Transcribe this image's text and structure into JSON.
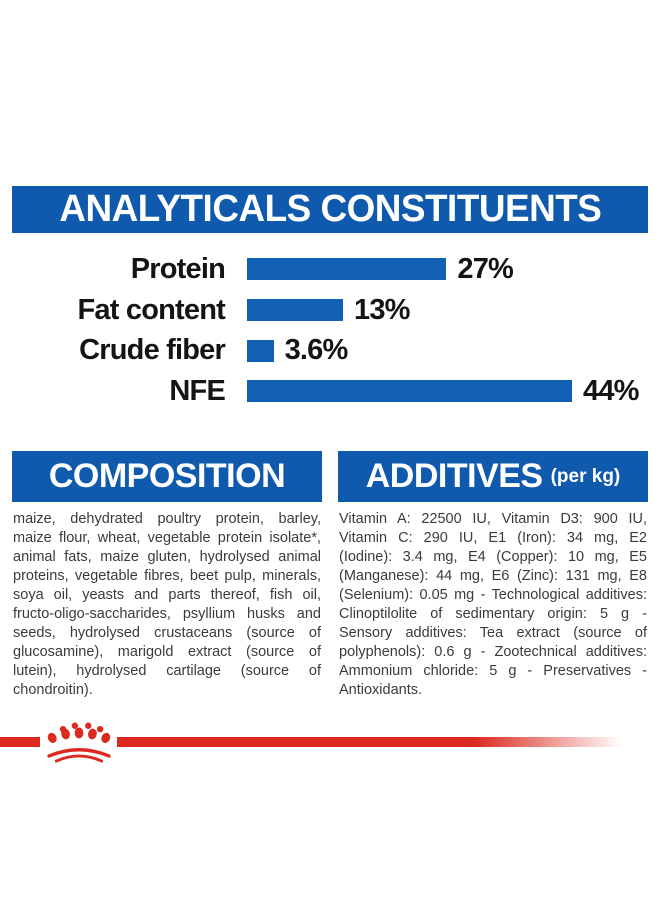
{
  "colors": {
    "banner_blue": "#0f5aad",
    "bar_blue": "#1160b4",
    "brand_red": "#dc2a20",
    "label_black": "#141414",
    "body_gray": "#3b3b3b"
  },
  "analyticals": {
    "title": "ANALYTICALS CONSTITUENTS"
  },
  "chart_data": {
    "type": "bar",
    "orientation": "horizontal",
    "title": "ANALYTICALS CONSTITUENTS",
    "categories": [
      "Protein",
      "Fat content",
      "Crude fiber",
      "NFE"
    ],
    "values": [
      27,
      13,
      3.6,
      44
    ],
    "value_labels": [
      "27%",
      "13%",
      "3.6%",
      "44%"
    ],
    "unit": "%",
    "xlim": [
      0,
      44
    ],
    "grid": false,
    "legend": false,
    "bar_color": "#1160b4"
  },
  "composition": {
    "title": "COMPOSITION",
    "body": "maize, dehydrated poultry protein, barley, maize flour, wheat, vegetable protein isolate*, animal fats, maize gluten, hydrolysed animal proteins, vegetable fibres, beet pulp, minerals, soya oil, yeasts and parts thereof, fish oil, fructo-oligo-saccharides, psyllium husks and seeds, hydrolysed crustaceans (source of glucosamine), marigold extract (source of lutein), hydrolysed cartilage (source of chondroitin)."
  },
  "additives": {
    "title": "ADDITIVES",
    "unit": "(per kg)",
    "body": "Vitamin A: 22500 IU, Vitamin D3: 900 IU, Vitamin C: 290 IU, E1 (Iron): 34 mg, E2 (Iodine): 3.4 mg, E4 (Copper): 10 mg, E5 (Manganese): 44 mg, E6 (Zinc): 131 mg, E8 (Selenium): 0.05 mg - Technological additives: Clinoptilolite of sedimentary origin: 5 g - Sensory additives: Tea extract (source of polyphenols): 0.6 g - Zootechnical additives: Ammonium chloride: 5 g - Preservatives - Antioxidants."
  },
  "footer": {
    "brand_icon": "royal-canin-crown"
  }
}
